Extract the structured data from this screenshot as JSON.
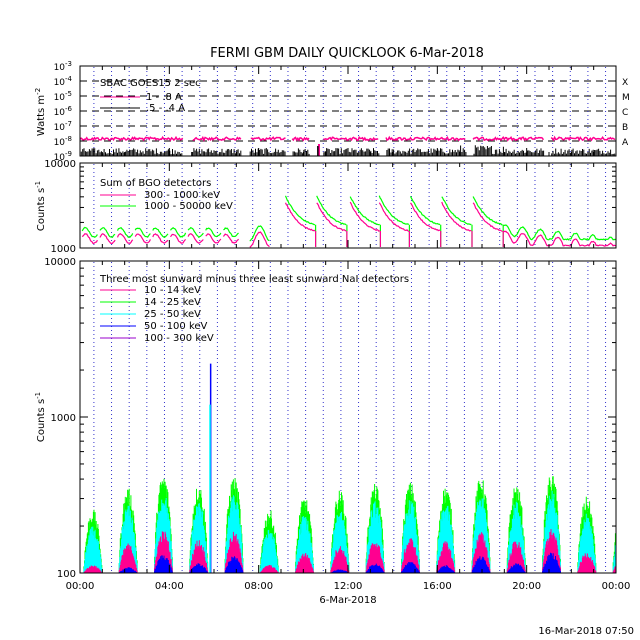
{
  "title": "FERMI GBM DAILY QUICKLOOK    6-Mar-2018",
  "footer": "16-Mar-2018 07:50",
  "xaxis": {
    "ticks": [
      "00:00",
      "04:00",
      "08:00",
      "12:00",
      "16:00",
      "20:00",
      "00:00"
    ],
    "label": "6-Mar-2018"
  },
  "panels": {
    "goes": {
      "ylabel": "Watts m",
      "ylabel_sup": "-2",
      "legend_title": "SBAC GOES15 2 sec",
      "legend": [
        {
          "label": "1 - .8 A",
          "color": "#ff0090"
        },
        {
          "label": ".5 - .4 A",
          "color": "#000000"
        }
      ],
      "ticks": [
        {
          "base": "10",
          "exp": "-3"
        },
        {
          "base": "10",
          "exp": "-4"
        },
        {
          "base": "10",
          "exp": "-5"
        },
        {
          "base": "10",
          "exp": "-6"
        },
        {
          "base": "10",
          "exp": "-7"
        },
        {
          "base": "10",
          "exp": "-8"
        },
        {
          "base": "10",
          "exp": "-9"
        }
      ],
      "classes": [
        "X",
        "M",
        "C",
        "B",
        "A"
      ]
    },
    "bgo": {
      "ylabel": "Counts s",
      "ylabel_sup": "-1",
      "legend_title": "Sum of BGO detectors",
      "legend": [
        {
          "label": "300 - 1000 keV",
          "color": "#ff0090"
        },
        {
          "label": "1000 - 50000 keV",
          "color": "#00ff00"
        }
      ],
      "ticks": [
        "10000",
        "1000"
      ]
    },
    "nai": {
      "ylabel": "Counts s",
      "ylabel_sup": "-1",
      "legend_title": "Three most sunward minus three least sunward NaI detectors",
      "legend": [
        {
          "label": "10 - 14 keV",
          "color": "#ff0090"
        },
        {
          "label": "14 - 25 keV",
          "color": "#00ff00"
        },
        {
          "label": "25 - 50 keV",
          "color": "#00ffff"
        },
        {
          "label": "50 - 100 keV",
          "color": "#0000ff"
        },
        {
          "label": "100 - 300 keV",
          "color": "#9900cc"
        }
      ],
      "ticks": [
        "10000",
        "1000",
        "100"
      ]
    }
  },
  "chart_data": [
    {
      "type": "line",
      "title": "FERMI GBM DAILY QUICKLOOK    6-Mar-2018",
      "ylabel": "Watts m^-2",
      "yscale": "log",
      "ylim": [
        1e-09,
        0.001
      ],
      "xlim": [
        "00:00",
        "24:00"
      ],
      "series": [
        {
          "name": "1 - .8 A",
          "approx_level": 1.5e-08
        },
        {
          "name": ".5 - .4 A",
          "approx_level": 2e-09
        }
      ]
    },
    {
      "type": "line",
      "ylabel": "Counts s^-1",
      "yscale": "log",
      "ylim": [
        1000,
        10000
      ],
      "xlim": [
        "00:00",
        "24:00"
      ],
      "series": [
        {
          "name": "300 - 1000 keV",
          "approx_baseline": 1200
        },
        {
          "name": "1000 - 50000 keV",
          "approx_baseline": 1350
        }
      ]
    },
    {
      "type": "line",
      "ylabel": "Counts s^-1",
      "yscale": "log",
      "ylim": [
        100,
        10000
      ],
      "xlim": [
        "00:00",
        "24:00"
      ],
      "series": [
        {
          "name": "10 - 14 keV",
          "approx_peak": 160
        },
        {
          "name": "14 - 25 keV",
          "approx_peak": 420
        },
        {
          "name": "25 - 50 keV",
          "approx_peak": 300
        },
        {
          "name": "50 - 100 keV",
          "approx_peak": 130
        },
        {
          "name": "100 - 300 keV",
          "approx_peak": 110
        }
      ],
      "annotations": [
        {
          "x": "05:50",
          "y": 2000,
          "text": "spike"
        }
      ]
    }
  ]
}
